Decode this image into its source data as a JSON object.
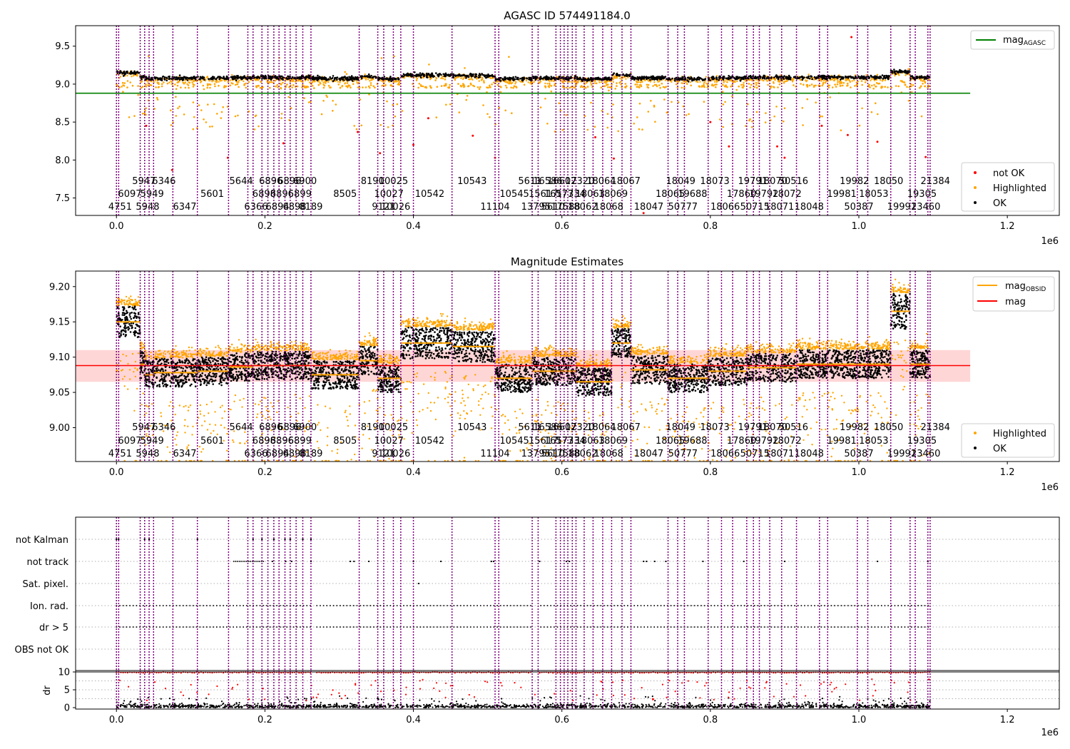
{
  "figure": {
    "background": "#ffffff",
    "colors": {
      "ok": "#000000",
      "highlighted": "#ffa500",
      "not_ok": "#ff0000",
      "agasc_line": "#008000",
      "mag_line": "#ff0000",
      "obsid_line": "#ffa500",
      "obs_boundary": "#800080",
      "mag_band": "#ffcccc"
    }
  },
  "chart_data": [
    {
      "id": "agasc",
      "type": "scatter",
      "title": "AGASC ID 574491184.0",
      "xlim": [
        -55000,
        1270000
      ],
      "ylim": [
        7.27,
        9.77
      ],
      "x_ticks": [
        0,
        200000,
        400000,
        600000,
        800000,
        1000000,
        1200000
      ],
      "x_tick_labels": [
        "0.0",
        "0.2",
        "0.4",
        "0.6",
        "0.8",
        "1.0",
        "1.2"
      ],
      "x_offset_label": "1e6",
      "y_ticks": [
        7.5,
        8.0,
        8.5,
        9.0,
        9.5
      ],
      "y_tick_labels": [
        "7.5",
        "8.0",
        "8.5",
        "9.0",
        "9.5"
      ],
      "reference_line": {
        "y": 8.88,
        "x_range": [
          -55000,
          1150000
        ]
      },
      "legend": {
        "top": [
          {
            "label": "mag",
            "sub": "AGASC",
            "style": "line",
            "color": "#008000"
          }
        ],
        "bottom": [
          {
            "label": "not OK",
            "style": "dot",
            "color": "#ff0000"
          },
          {
            "label": "Highlighted",
            "style": "dot",
            "color": "#ffa500"
          },
          {
            "label": "OK",
            "style": "dot",
            "color": "#000000"
          }
        ],
        "placement": "right"
      }
    },
    {
      "id": "estimates",
      "type": "scatter",
      "title": "Magnitude Estimates",
      "xlim": [
        -55000,
        1270000
      ],
      "ylim": [
        8.952,
        9.222
      ],
      "x_ticks": [
        0,
        200000,
        400000,
        600000,
        800000,
        1000000,
        1200000
      ],
      "x_tick_labels": [
        "0.0",
        "0.2",
        "0.4",
        "0.6",
        "0.8",
        "1.0",
        "1.2"
      ],
      "x_offset_label": "1e6",
      "y_ticks": [
        9.0,
        9.05,
        9.1,
        9.15,
        9.2
      ],
      "y_tick_labels": [
        "9.00",
        "9.05",
        "9.10",
        "9.15",
        "9.20"
      ],
      "mag": {
        "value": 9.088,
        "band": [
          9.065,
          9.11
        ],
        "x_range": [
          -55000,
          1150000
        ]
      },
      "legend": {
        "top": [
          {
            "label": "mag",
            "sub": "OBSID",
            "style": "line",
            "color": "#ffa500"
          },
          {
            "label": "mag",
            "style": "line",
            "color": "#ff0000"
          }
        ],
        "bottom": [
          {
            "label": "Highlighted",
            "style": "dot",
            "color": "#ffa500"
          },
          {
            "label": "OK",
            "style": "dot",
            "color": "#000000"
          }
        ],
        "placement": "right"
      }
    },
    {
      "id": "flags",
      "type": "scatter",
      "xlim": [
        -55000,
        1270000
      ],
      "categories": [
        "not Kalman",
        "not track",
        "Sat. pixel.",
        "Ion. rad.",
        "dr > 5",
        "OBS not OK"
      ],
      "x_ticks": [
        0,
        200000,
        400000,
        600000,
        800000,
        1000000,
        1200000
      ],
      "x_tick_labels": [
        "0.0",
        "0.2",
        "0.4",
        "0.6",
        "0.8",
        "1.0",
        "1.2"
      ],
      "x_offset_label": "1e6"
    },
    {
      "id": "dr",
      "type": "scatter",
      "ylabel": "dr",
      "xlim": [
        -55000,
        1270000
      ],
      "ylim": [
        -0.4,
        10.4
      ],
      "y_ticks": [
        0,
        5,
        10
      ],
      "y_tick_labels": [
        "0",
        "5",
        "10"
      ],
      "threshold": 10
    }
  ],
  "observations": {
    "labels": [
      {
        "text": "4751",
        "x": 5000,
        "row": 2
      },
      {
        "text": "6097",
        "x": 18000,
        "row": 1
      },
      {
        "text": "5947",
        "x": 37000,
        "row": 0
      },
      {
        "text": "5948",
        "x": 42000,
        "row": 2
      },
      {
        "text": "5949",
        "x": 48000,
        "row": 1
      },
      {
        "text": "6346",
        "x": 64000,
        "row": 0
      },
      {
        "text": "6347",
        "x": 92000,
        "row": 2
      },
      {
        "text": "5601",
        "x": 129000,
        "row": 1
      },
      {
        "text": "5644",
        "x": 168000,
        "row": 0
      },
      {
        "text": "6366",
        "x": 188000,
        "row": 2
      },
      {
        "text": "6898",
        "x": 199000,
        "row": 1
      },
      {
        "text": "6896",
        "x": 208000,
        "row": 0
      },
      {
        "text": "6894",
        "x": 217000,
        "row": 2
      },
      {
        "text": "6896",
        "x": 223000,
        "row": 1
      },
      {
        "text": "6896",
        "x": 233000,
        "row": 0
      },
      {
        "text": "6898",
        "x": 240000,
        "row": 2
      },
      {
        "text": "6899",
        "x": 247000,
        "row": 1
      },
      {
        "text": "6900",
        "x": 254000,
        "row": 0
      },
      {
        "text": "8189",
        "x": 262000,
        "row": 2
      },
      {
        "text": "8505",
        "x": 308000,
        "row": 1
      },
      {
        "text": "8190",
        "x": 345000,
        "row": 0
      },
      {
        "text": "9121",
        "x": 360000,
        "row": 2
      },
      {
        "text": "10027",
        "x": 367000,
        "row": 1
      },
      {
        "text": "10025",
        "x": 373000,
        "row": 0
      },
      {
        "text": "10026",
        "x": 376000,
        "row": 2
      },
      {
        "text": "10542",
        "x": 422000,
        "row": 1
      },
      {
        "text": "10543",
        "x": 479000,
        "row": 0
      },
      {
        "text": "11104",
        "x": 510000,
        "row": 2
      },
      {
        "text": "10545",
        "x": 536000,
        "row": 1
      },
      {
        "text": "5611",
        "x": 557000,
        "row": 0
      },
      {
        "text": "13795",
        "x": 565000,
        "row": 2
      },
      {
        "text": "15617",
        "x": 575000,
        "row": 1
      },
      {
        "text": "16586",
        "x": 581000,
        "row": 0
      },
      {
        "text": "5610",
        "x": 588000,
        "row": 2
      },
      {
        "text": "16577",
        "x": 596000,
        "row": 1
      },
      {
        "text": "16602",
        "x": 600000,
        "row": 0
      },
      {
        "text": "17588",
        "x": 605000,
        "row": 2
      },
      {
        "text": "17334",
        "x": 612000,
        "row": 1
      },
      {
        "text": "17320",
        "x": 624000,
        "row": 0
      },
      {
        "text": "18062",
        "x": 628000,
        "row": 2
      },
      {
        "text": "18063",
        "x": 638000,
        "row": 1
      },
      {
        "text": "18064",
        "x": 653000,
        "row": 0
      },
      {
        "text": "18068",
        "x": 663000,
        "row": 2
      },
      {
        "text": "18069",
        "x": 669000,
        "row": 1
      },
      {
        "text": "18067",
        "x": 686000,
        "row": 0
      },
      {
        "text": "18047",
        "x": 717000,
        "row": 2
      },
      {
        "text": "18065",
        "x": 746000,
        "row": 1
      },
      {
        "text": "18049",
        "x": 760000,
        "row": 0
      },
      {
        "text": "50777",
        "x": 763000,
        "row": 2
      },
      {
        "text": "19688",
        "x": 776000,
        "row": 1
      },
      {
        "text": "18073",
        "x": 806000,
        "row": 0
      },
      {
        "text": "18066",
        "x": 820000,
        "row": 2
      },
      {
        "text": "17860",
        "x": 842000,
        "row": 1
      },
      {
        "text": "50715",
        "x": 860000,
        "row": 2
      },
      {
        "text": "19791",
        "x": 857000,
        "row": 0
      },
      {
        "text": "18070",
        "x": 884000,
        "row": 0
      },
      {
        "text": "19792",
        "x": 872000,
        "row": 1
      },
      {
        "text": "18071",
        "x": 893000,
        "row": 2
      },
      {
        "text": "18072",
        "x": 903000,
        "row": 1
      },
      {
        "text": "50516",
        "x": 912000,
        "row": 0
      },
      {
        "text": "18048",
        "x": 933000,
        "row": 2
      },
      {
        "text": "19981",
        "x": 977000,
        "row": 1
      },
      {
        "text": "19982",
        "x": 994000,
        "row": 0
      },
      {
        "text": "50387",
        "x": 1000000,
        "row": 2
      },
      {
        "text": "18053",
        "x": 1020000,
        "row": 1
      },
      {
        "text": "18050",
        "x": 1040000,
        "row": 0
      },
      {
        "text": "19991",
        "x": 1058000,
        "row": 2
      },
      {
        "text": "19305",
        "x": 1085000,
        "row": 1
      },
      {
        "text": "23460",
        "x": 1090000,
        "row": 2
      },
      {
        "text": "21384",
        "x": 1103000,
        "row": 0
      }
    ]
  }
}
